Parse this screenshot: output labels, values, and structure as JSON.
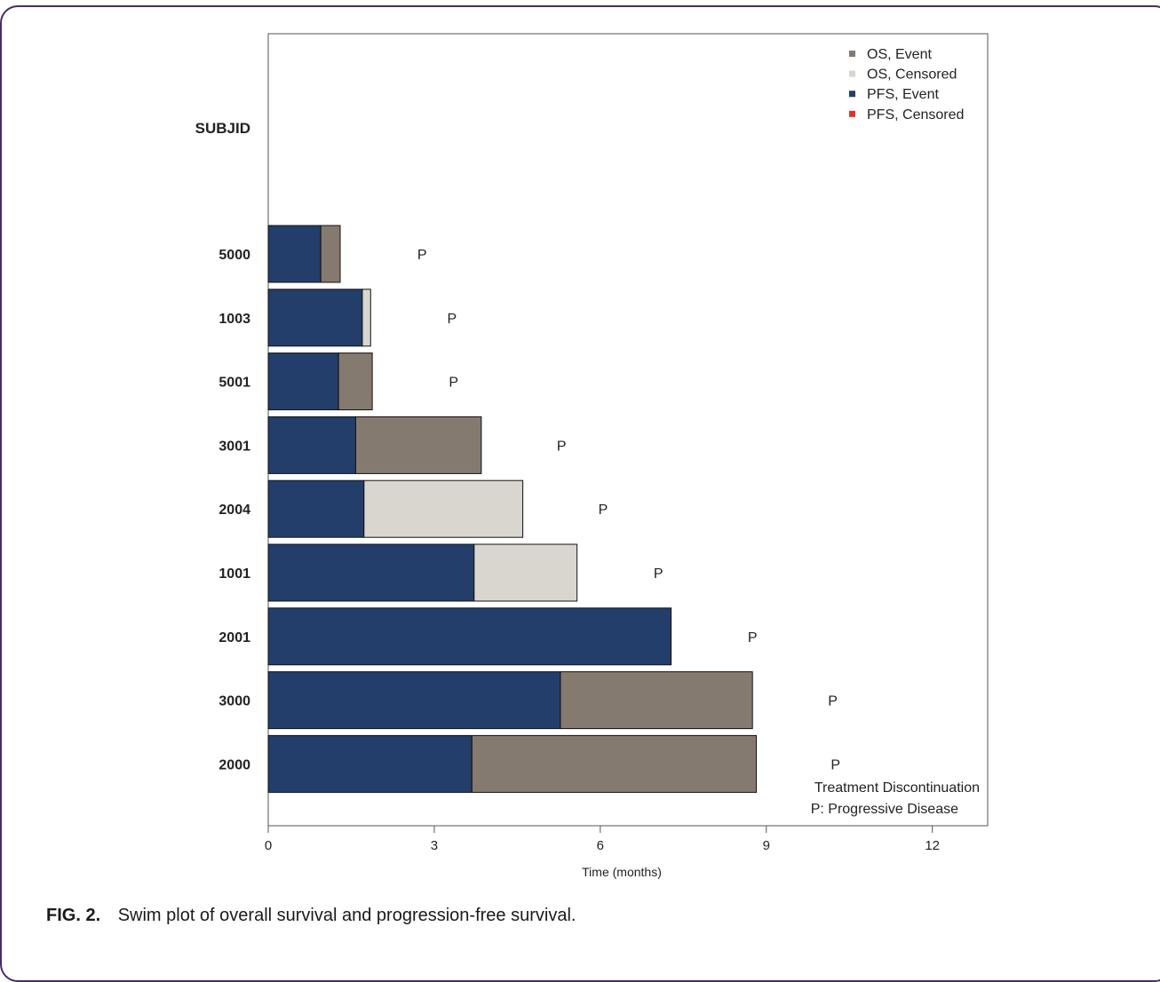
{
  "figure": {
    "label": "FIG. 2.",
    "caption": "Swim plot of overall survival and progression-free survival."
  },
  "chart_data": {
    "type": "bar",
    "orientation": "horizontal",
    "stacked": true,
    "xlabel": "Time (months)",
    "ylabel": "SUBJID",
    "xlim": [
      0,
      13
    ],
    "xticks": [
      0,
      3,
      6,
      9,
      12
    ],
    "grid": false,
    "legend_position": "top-right",
    "categories": [
      "5000",
      "1003",
      "5001",
      "3001",
      "2004",
      "1001",
      "2001",
      "3000",
      "2000"
    ],
    "pfs_event": [
      0.95,
      1.7,
      1.27,
      1.58,
      1.73,
      3.72,
      7.28,
      5.28,
      3.68
    ],
    "os_end": [
      1.3,
      1.85,
      1.88,
      3.85,
      4.6,
      5.58,
      7.28,
      8.75,
      8.82
    ],
    "os_status": [
      "event",
      "censored",
      "event",
      "event",
      "censored",
      "censored",
      "none",
      "event",
      "event"
    ],
    "progression_marker": {
      "symbol": "P",
      "x": [
        2.78,
        3.32,
        3.35,
        5.3,
        6.05,
        7.05,
        8.75,
        10.2,
        10.25
      ]
    },
    "legend": [
      {
        "label": "OS, Event",
        "color": "#857a70"
      },
      {
        "label": "OS, Censored",
        "color": "#d9d6d0"
      },
      {
        "label": "PFS, Event",
        "color": "#243e6b"
      },
      {
        "label": "PFS, Censored",
        "color": "#e0322d"
      }
    ],
    "annotations": [
      "Treatment Discontinuation",
      "P: Progressive Disease"
    ],
    "colors": {
      "os_event": "#857a70",
      "os_censored": "#d9d6d0",
      "pfs_event": "#243e6b",
      "pfs_censored": "#e0322d"
    }
  }
}
